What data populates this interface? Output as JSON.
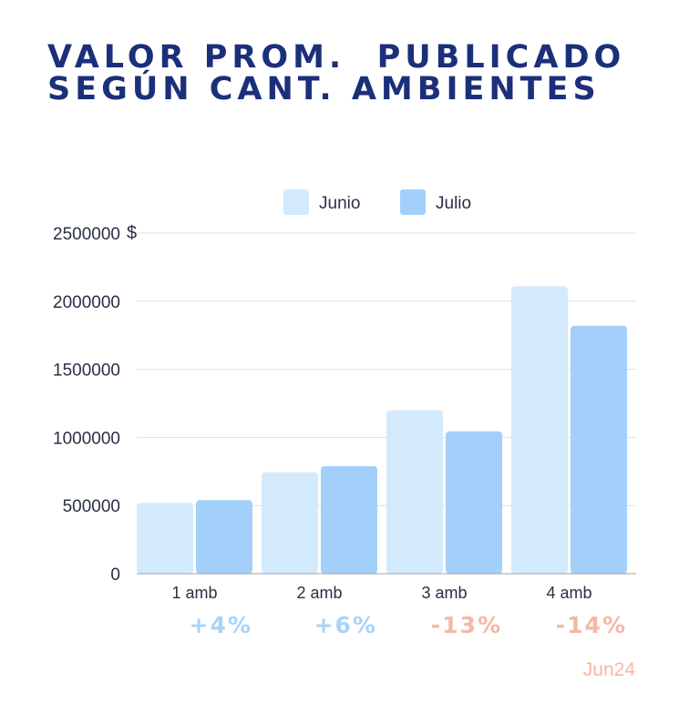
{
  "title_lines": [
    "VALOR PROM.  PUBLICADO",
    "SEGÚN CANT. AMBIENTES"
  ],
  "colors": {
    "title": "#1c2f7a",
    "junio": "#d3eafc",
    "julio": "#a3cffb",
    "positive": "#a9d3f8",
    "negative": "#f6b7a6",
    "source": "#f6b7a6"
  },
  "chart_data": {
    "type": "bar",
    "categories": [
      "1 amb",
      "2 amb",
      "3 amb",
      "4 amb"
    ],
    "series": [
      {
        "name": "Junio",
        "values": [
          520000,
          745000,
          1200000,
          2110000
        ]
      },
      {
        "name": "Julio",
        "values": [
          540000,
          790000,
          1045000,
          1820000
        ]
      }
    ],
    "ylim": [
      0,
      2500000
    ],
    "yticks": [
      "0",
      "500000",
      "1000000",
      "1500000",
      "2000000",
      "2500000"
    ],
    "y_unit": "$",
    "grid": true,
    "legend_position": "top-center",
    "changes": [
      "+4%",
      "+6%",
      "-13%",
      "-14%"
    ]
  },
  "source_label": "Jun24"
}
